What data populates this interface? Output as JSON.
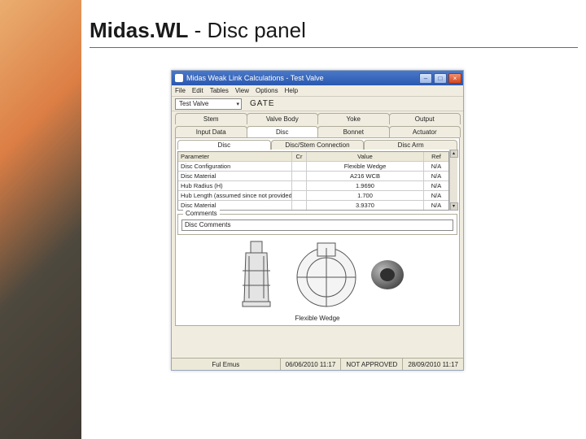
{
  "slide": {
    "title_bold": "Midas.WL",
    "title_rest": " - Disc panel"
  },
  "window": {
    "title": "Midas Weak Link Calculations - Test Valve",
    "min": "–",
    "max": "□",
    "close": "×"
  },
  "menus": {
    "file": "File",
    "edit": "Edit",
    "tables": "Tables",
    "view": "View",
    "options": "Options",
    "help": "Help"
  },
  "toolbar": {
    "valve_combo": "Test Valve",
    "type_label": "GATE"
  },
  "tabs_row1": {
    "stem": "Stem",
    "valve_body": "Valve Body",
    "yoke": "Yoke",
    "output": "Output"
  },
  "tabs_row2": {
    "input": "Input Data",
    "disc": "Disc",
    "bonnet": "Bonnet",
    "actuator": "Actuator"
  },
  "subtabs": {
    "disc": "Disc",
    "conn": "Disc/Stem Connection",
    "arm": "Disc Arm"
  },
  "grid": {
    "headers": {
      "param": "Parameter",
      "cr": "Cr",
      "val": "Value",
      "ref": "Ref"
    },
    "rows": [
      {
        "param": "Disc Configuration",
        "cr": "",
        "val": "Flexible Wedge",
        "ref": "N/A"
      },
      {
        "param": "Disc Material",
        "cr": "",
        "val": "A216 WCB",
        "ref": "N/A"
      },
      {
        "param": "Hub Radius (H)",
        "cr": "",
        "val": "1.9690",
        "ref": "N/A"
      },
      {
        "param": "Hub Length (assumed since not provided) (g)",
        "cr": "",
        "val": "1.700",
        "ref": "N/A"
      },
      {
        "param": "Disc Material",
        "cr": "",
        "val": "3.9370",
        "ref": "N/A"
      }
    ]
  },
  "comments": {
    "legend": "Comments",
    "label": "Disc Comments",
    "value": ""
  },
  "caption": "Flexible Wedge",
  "status": {
    "user": "Ful Emus",
    "date1": "06/06/2010 11:17",
    "state": "NOT APPROVED",
    "date2": "28/09/2010 11:17"
  },
  "colors": {
    "titlebar_top": "#4a78c8",
    "titlebar_bot": "#2a58b0",
    "panel_bg": "#f0ede0",
    "white": "#ffffff",
    "svg_stroke": "#555555",
    "svg_fill": "#dedede",
    "shade": "#888888"
  }
}
